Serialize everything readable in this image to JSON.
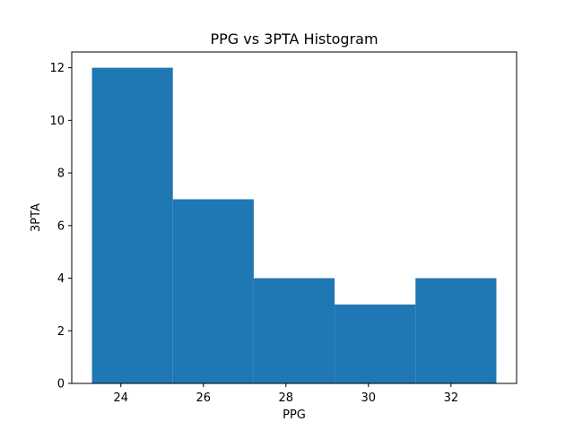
{
  "chart_data": {
    "type": "bar",
    "title": "PPG vs 3PTA Histogram",
    "xlabel": "PPG",
    "ylabel": "3PTA",
    "bins": [
      {
        "x0": 23.3,
        "x1": 25.26,
        "value": 12
      },
      {
        "x0": 25.26,
        "x1": 27.22,
        "value": 7
      },
      {
        "x0": 27.22,
        "x1": 29.18,
        "value": 4
      },
      {
        "x0": 29.18,
        "x1": 31.14,
        "value": 3
      },
      {
        "x0": 31.14,
        "x1": 33.1,
        "value": 4
      }
    ],
    "xlim": [
      22.81,
      33.59
    ],
    "ylim": [
      0,
      12.6
    ],
    "xticks": [
      24,
      26,
      28,
      30,
      32
    ],
    "yticks": [
      0,
      2,
      4,
      6,
      8,
      10,
      12
    ],
    "bar_color": "#1f77b4",
    "grid": false
  }
}
